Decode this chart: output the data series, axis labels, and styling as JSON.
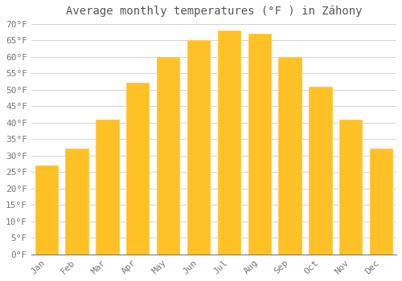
{
  "title": "Average monthly temperatures (°F ) in Záhony",
  "months": [
    "Jan",
    "Feb",
    "Mar",
    "Apr",
    "May",
    "Jun",
    "Jul",
    "Aug",
    "Sep",
    "Oct",
    "Nov",
    "Dec"
  ],
  "values": [
    27,
    32,
    41,
    52,
    60,
    65,
    68,
    67,
    60,
    51,
    41,
    32
  ],
  "bar_color": "#FFC125",
  "bar_edge_color": "#FFCC55",
  "background_color": "#FFFFFF",
  "grid_color": "#CCCCCC",
  "text_color": "#777777",
  "title_color": "#555555",
  "ylim": [
    0,
    70
  ],
  "yticks": [
    0,
    5,
    10,
    15,
    20,
    25,
    30,
    35,
    40,
    45,
    50,
    55,
    60,
    65,
    70
  ],
  "title_fontsize": 10,
  "tick_fontsize": 8,
  "font_family": "monospace",
  "bar_width": 0.75
}
